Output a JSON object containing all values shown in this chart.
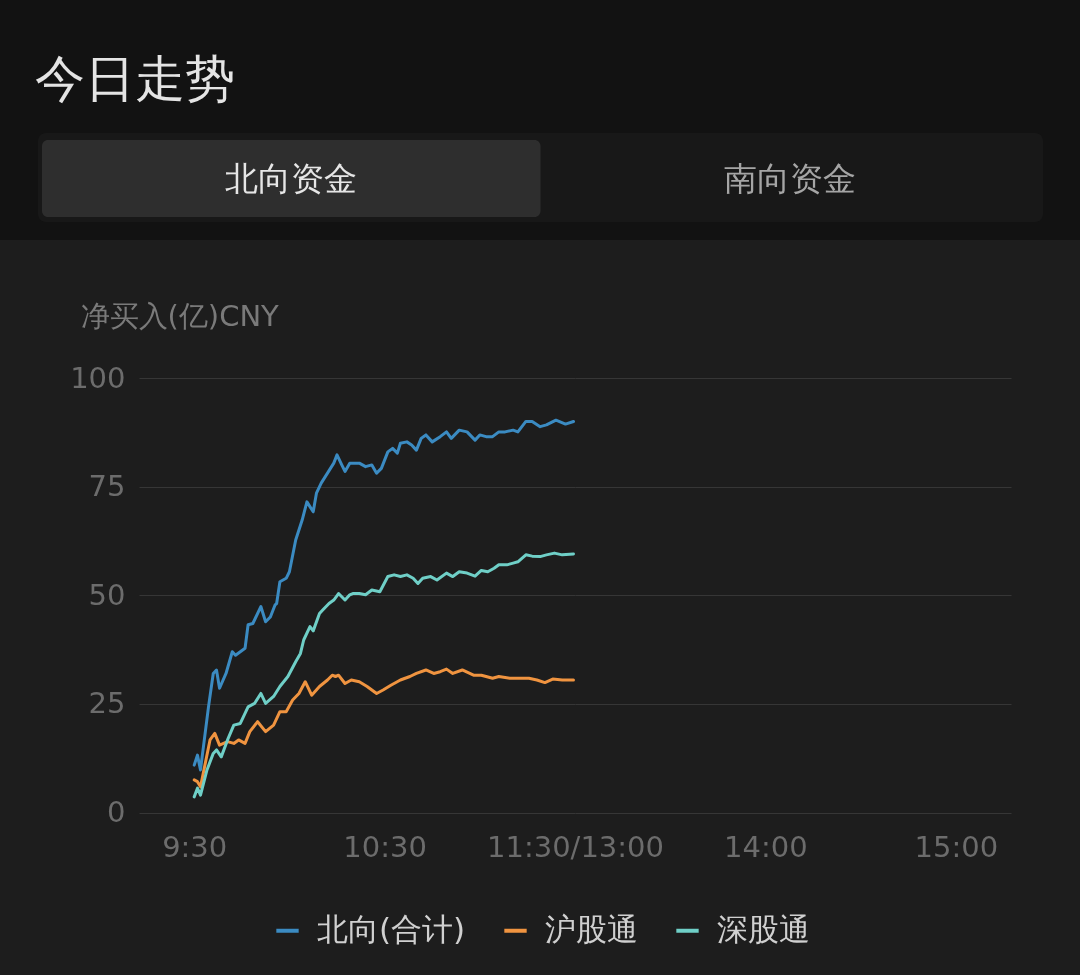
{
  "chart_data": [
    {
      "type": "line",
      "title": "今日走势",
      "ylabel": "净买入(亿)CNY",
      "annotations": [
        "北向资金",
        "南向资金"
      ],
      "xlim": [
        9.21,
        11.5
      ],
      "xticks": [
        {
          "value": 9.5,
          "label": "9:30"
        },
        {
          "value": 10.5,
          "label": "10:30"
        },
        {
          "value": 11.5,
          "label": "11:30/13:00"
        }
      ],
      "ylim": [
        0,
        100
      ],
      "yticks": [
        0,
        25,
        50,
        75,
        100
      ],
      "grid": "y",
      "legend": "bottom",
      "series": [
        {
          "name": "北向(合计)",
          "color": "#3b8bc2",
          "x": [
            9.5,
            9.517,
            9.533,
            9.575,
            9.6,
            9.617,
            9.633,
            9.667,
            9.7,
            9.717,
            9.742,
            9.767,
            9.783,
            9.808,
            9.85,
            9.875,
            9.9,
            9.925,
            9.933,
            9.95,
            9.983,
            10,
            10.033,
            10.067,
            10.092,
            10.125,
            10.142,
            10.167,
            10.2,
            10.233,
            10.25,
            10.275,
            10.292,
            10.317,
            10.367,
            10.4,
            10.433,
            10.458,
            10.483,
            10.517,
            10.542,
            10.567,
            10.583,
            10.617,
            10.642,
            10.667,
            10.692,
            10.717,
            10.75,
            10.792,
            10.825,
            10.85,
            10.892,
            10.933,
            10.975,
            11,
            11.033,
            11.067,
            11.1,
            11.133,
            11.175,
            11.2,
            11.242,
            11.275,
            11.317,
            11.35,
            11.4,
            11.45,
            11.492
          ],
          "values": [
            10.9,
            13.2,
            9.8,
            24.3,
            32,
            32.8,
            28.6,
            32,
            37,
            36.2,
            37,
            37.8,
            43.2,
            43.5,
            47.4,
            43.9,
            45,
            47.8,
            48.1,
            53.1,
            53.9,
            55.4,
            62.7,
            67.3,
            71.5,
            69.2,
            73.5,
            75.8,
            78.1,
            80.4,
            82.3,
            80,
            78.5,
            80.4,
            80.4,
            79.6,
            80,
            78.1,
            79.2,
            83,
            83.8,
            82.7,
            85,
            85.3,
            84.6,
            83.4,
            86.1,
            86.9,
            85.3,
            86.5,
            87.6,
            86.1,
            88,
            87.6,
            85.7,
            86.9,
            86.5,
            86.5,
            87.6,
            87.6,
            88,
            87.6,
            90,
            90,
            88.8,
            89.2,
            90.3,
            89.4,
            90
          ]
        },
        {
          "name": "沪股通",
          "color": "#f09440",
          "x": [
            9.5,
            9.517,
            9.533,
            9.583,
            9.608,
            9.633,
            9.675,
            9.708,
            9.733,
            9.767,
            9.792,
            9.833,
            9.875,
            9.917,
            9.95,
            9.983,
            10.017,
            10.05,
            10.083,
            10.117,
            10.158,
            10.2,
            10.225,
            10.242,
            10.258,
            10.292,
            10.325,
            10.367,
            10.408,
            10.458,
            10.492,
            10.533,
            10.583,
            10.633,
            10.667,
            10.717,
            10.758,
            10.792,
            10.825,
            10.858,
            10.908,
            10.967,
            11.008,
            11.033,
            11.067,
            11.1,
            11.158,
            11.208,
            11.258,
            11.3,
            11.342,
            11.383,
            11.433,
            11.492
          ],
          "values": [
            7.5,
            7.1,
            5.9,
            16.7,
            18.2,
            15.5,
            16.3,
            15.9,
            16.7,
            15.9,
            18.6,
            20.9,
            18.6,
            20.1,
            23.2,
            23.2,
            25.9,
            27.4,
            30.1,
            27,
            29,
            30.5,
            31.6,
            31.3,
            31.6,
            29.7,
            30.5,
            30.1,
            29,
            27.4,
            28.2,
            29.3,
            30.5,
            31.3,
            32,
            32.8,
            32,
            32.4,
            33,
            32,
            32.8,
            31.6,
            31.6,
            31.3,
            30.9,
            31.3,
            30.9,
            30.9,
            30.9,
            30.5,
            29.9,
            30.7,
            30.5,
            30.5
          ]
        },
        {
          "name": "深股通",
          "color": "#6fcfc7",
          "x": [
            9.5,
            9.517,
            9.533,
            9.567,
            9.6,
            9.617,
            9.642,
            9.675,
            9.708,
            9.742,
            9.783,
            9.817,
            9.85,
            9.875,
            9.917,
            9.95,
            9.992,
            10.033,
            10.058,
            10.075,
            10.108,
            10.125,
            10.158,
            10.175,
            10.208,
            10.233,
            10.258,
            10.292,
            10.317,
            10.333,
            10.367,
            10.4,
            10.433,
            10.475,
            10.517,
            10.55,
            10.583,
            10.617,
            10.65,
            10.675,
            10.7,
            10.742,
            10.775,
            10.825,
            10.858,
            10.892,
            10.933,
            10.975,
            11.008,
            11.042,
            11.075,
            11.1,
            11.142,
            11.175,
            11.2,
            11.242,
            11.275,
            11.317,
            11.35,
            11.392,
            11.433,
            11.492
          ],
          "values": [
            3.6,
            5.6,
            4.0,
            9.8,
            13.6,
            14.4,
            12.8,
            16.7,
            20.1,
            20.5,
            24.3,
            25.1,
            27.4,
            25.1,
            26.7,
            29,
            31.3,
            34.7,
            36.6,
            39.7,
            42.8,
            41.8,
            45.8,
            46.6,
            48.1,
            48.9,
            50.4,
            48.9,
            50.1,
            50.4,
            50.4,
            50.1,
            51.2,
            50.8,
            54.3,
            54.7,
            54.3,
            54.7,
            53.9,
            52.7,
            53.9,
            54.3,
            53.5,
            55.1,
            54.3,
            55.4,
            55.1,
            54.4,
            55.7,
            55.4,
            56.2,
            57,
            57,
            57.4,
            57.7,
            59.3,
            59,
            58.9,
            59.3,
            59.7,
            59.3,
            59.5
          ]
        }
      ]
    },
    {
      "type": "line",
      "xlim": [
        13,
        15.29
      ],
      "xticks": [
        {
          "value": 14,
          "label": "14:00"
        },
        {
          "value": 15,
          "label": "15:00"
        }
      ],
      "ylim": [
        0,
        100
      ],
      "yticks": [
        0,
        25,
        50,
        75,
        100
      ],
      "grid": "y",
      "tick_labels": "x"
    }
  ]
}
